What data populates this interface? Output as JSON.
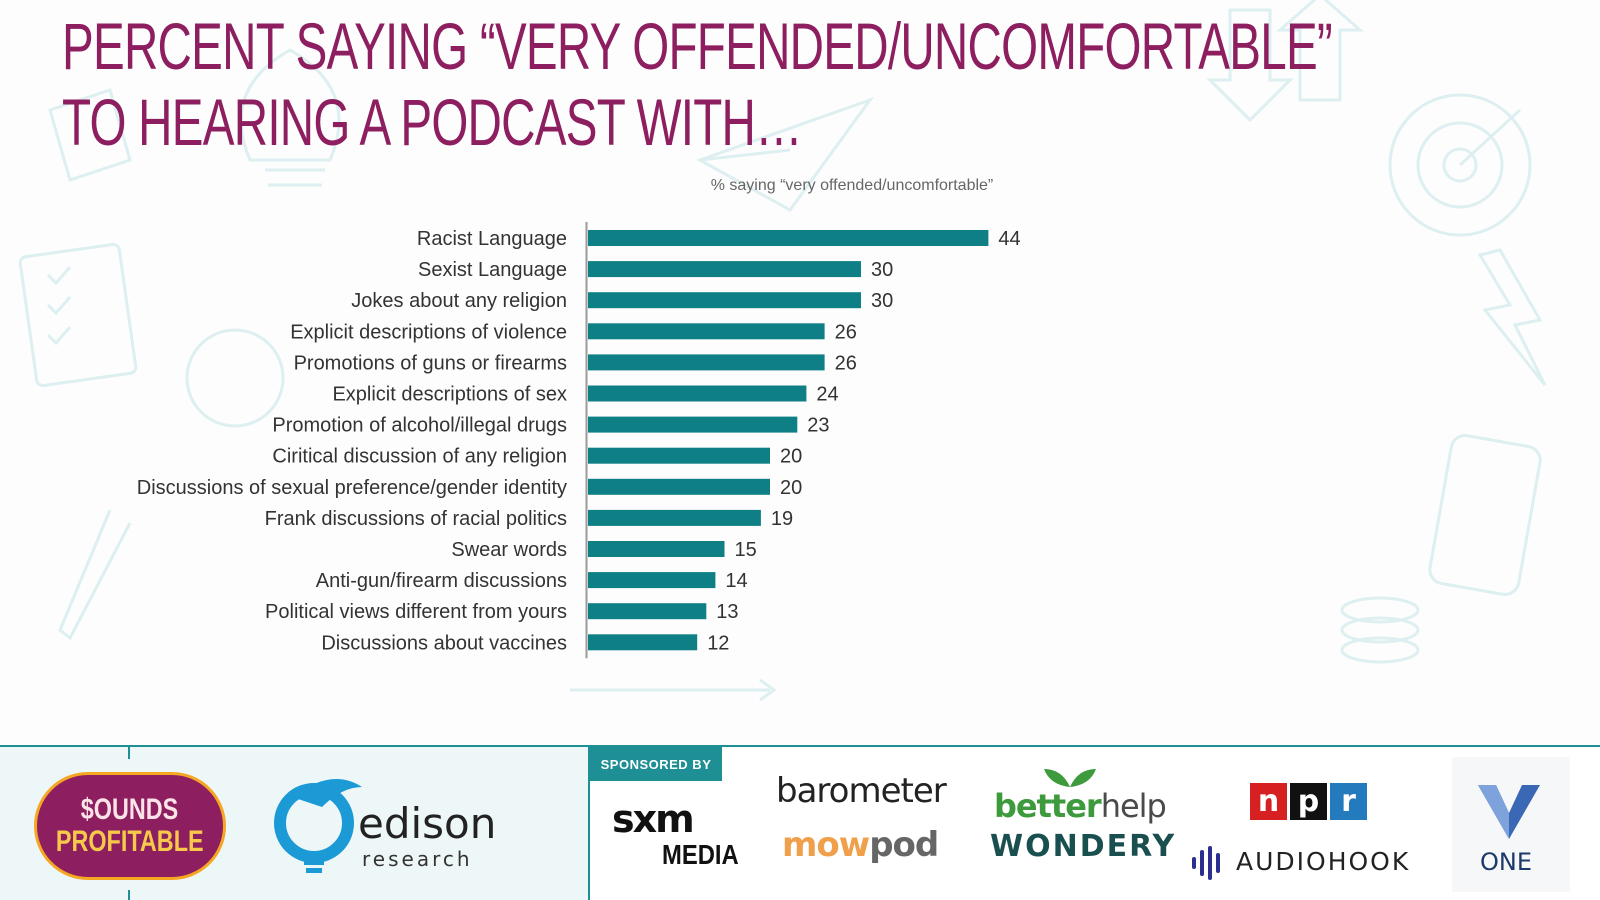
{
  "title": {
    "line1": "Percent saying “very offended/uncomfortable”",
    "line2": "to hearing a podcast with…"
  },
  "chart_data": {
    "type": "bar",
    "orientation": "horizontal",
    "subtitle": "% saying “very offended/uncomfortable”",
    "bar_color": "#0f7f86",
    "categories": [
      "Racist Language",
      "Sexist Language",
      "Jokes about any religion",
      "Explicit descriptions of violence",
      "Promotions of guns or firearms",
      "Explicit descriptions of sex",
      "Promotion of alcohol/illegal drugs",
      "Ciritical discussion of any religion",
      "Discussions of sexual preference/gender identity",
      "Frank discussions of racial politics",
      "Swear words",
      "Anti-gun/firearm discussions",
      "Political views different from yours",
      "Discussions about vaccines"
    ],
    "values": [
      44,
      30,
      30,
      26,
      26,
      24,
      23,
      20,
      20,
      19,
      15,
      14,
      13,
      12
    ],
    "xlim": [
      0,
      100
    ],
    "grid": false,
    "data_labels": true
  },
  "footer": {
    "sounds_profitable": {
      "line1": "$OUNDS",
      "line2": "PROFITABLE"
    },
    "edison": {
      "word": "edison",
      "sub": "research"
    },
    "sponsored_by": "SPONSORED BY",
    "sponsors": {
      "sxm": "sxm",
      "sxm_media": "MEDIA",
      "barometer": "barometer",
      "mowpod_a": "mow",
      "mowpod_b": "pod",
      "betterhelp_a": "better",
      "betterhelp_b": "help",
      "wondery": "WONDERY",
      "npr_n": "n",
      "npr_p": "p",
      "npr_r": "r",
      "audiohook": "AUDIOHOOK",
      "one": "ONE"
    }
  },
  "colors": {
    "title": "#8d1e5f",
    "accent": "#1e8f94",
    "bars": "#0f7f86"
  }
}
